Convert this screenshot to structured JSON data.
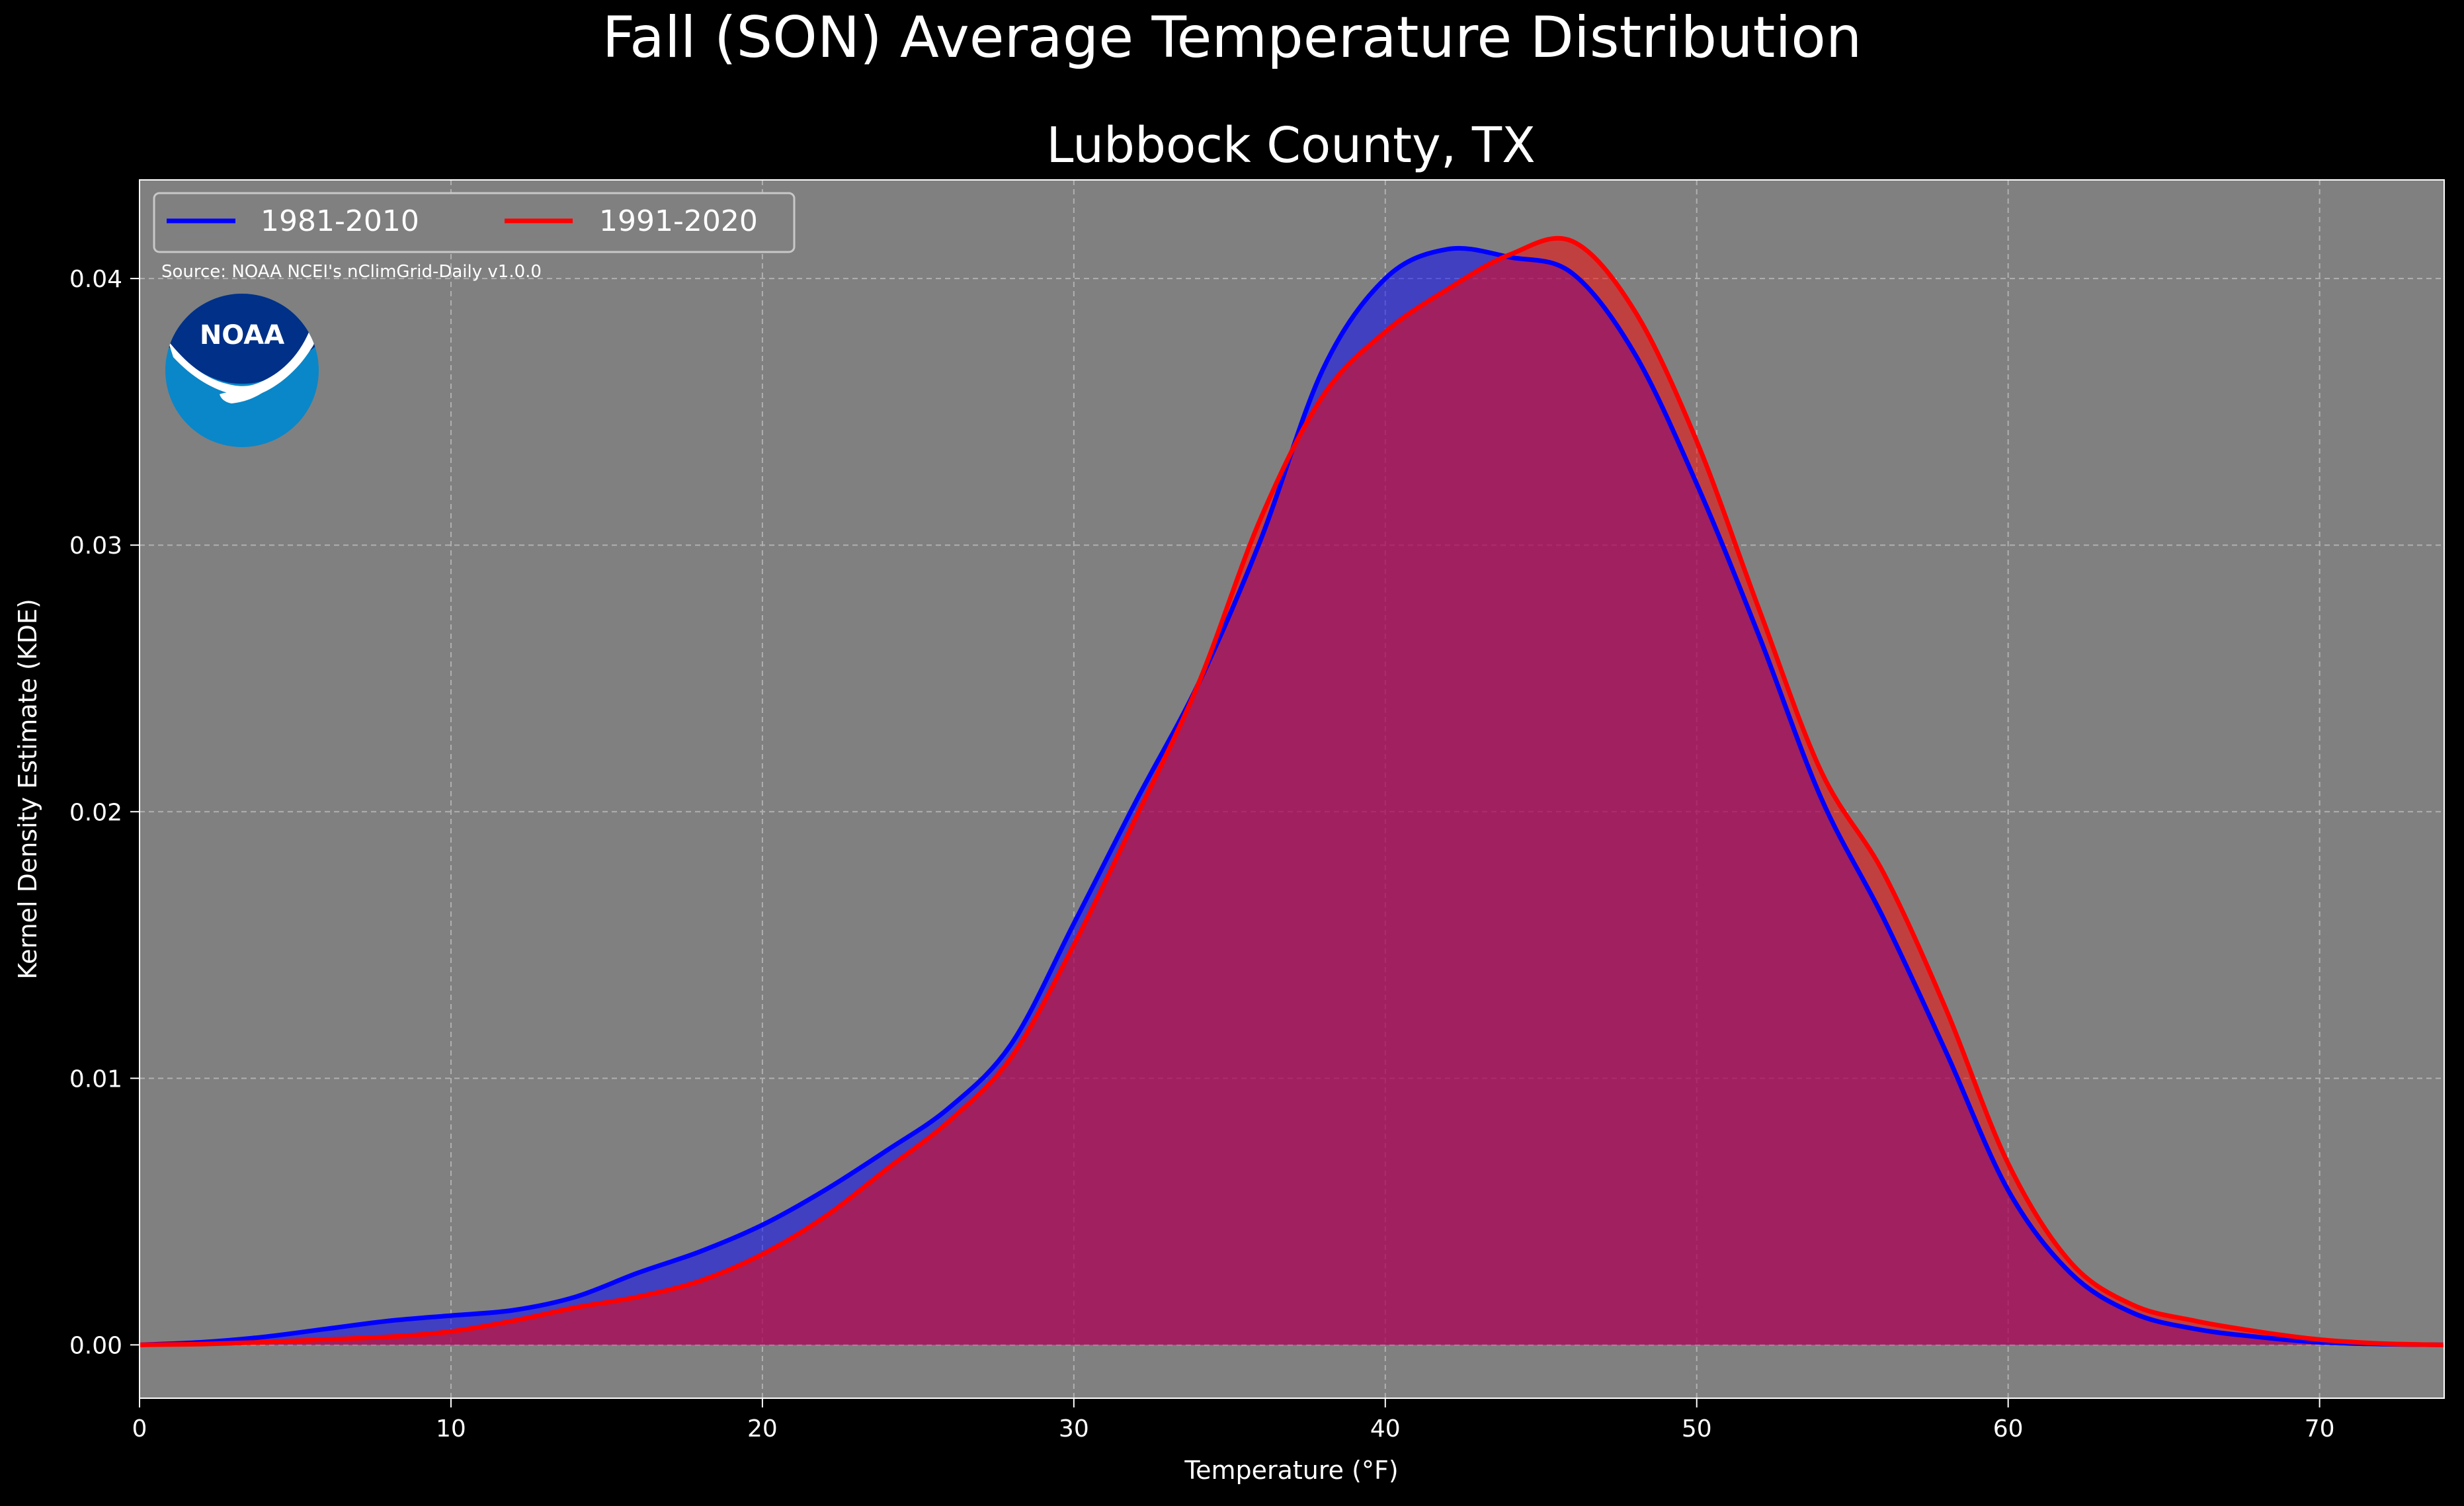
{
  "chart_data": {
    "type": "area",
    "suptitle": "Fall (SON) Average Temperature Distribution",
    "title": "Lubbock County, TX",
    "xlabel": "Temperature ($^\\circ$F)",
    "xlabel_display": "Temperature (°F)",
    "ylabel": "Kernel Density Estimate (KDE)",
    "source": "Source: NOAA NCEI's nClimGrid-Daily v1.0.0",
    "logo_text": "NOAA",
    "xlim": [
      0,
      74
    ],
    "ylim": [
      -0.002,
      0.0437
    ],
    "xticks": [
      0,
      10,
      20,
      30,
      40,
      50,
      60,
      70
    ],
    "xtick_labels": [
      "0",
      "10",
      "20",
      "30",
      "40",
      "50",
      "60",
      "70"
    ],
    "yticks": [
      0,
      0.01,
      0.02,
      0.03,
      0.04
    ],
    "ytick_labels": [
      "0.00",
      "0.01",
      "0.02",
      "0.03",
      "0.04"
    ],
    "grid": true,
    "legend_placement": "top-left",
    "background": "#808080",
    "series": [
      {
        "name": "1981-2010",
        "color": "#0000ff",
        "x": [
          0,
          2,
          4,
          6,
          8,
          10,
          12,
          14,
          16,
          18,
          20,
          22,
          24,
          26,
          28,
          30,
          32,
          34,
          36,
          38,
          40,
          42,
          44,
          46,
          48,
          50,
          52,
          54,
          56,
          58,
          60,
          62,
          64,
          66,
          68,
          70,
          72,
          74
        ],
        "y": [
          0,
          0.0001,
          0.0003,
          0.0006,
          0.0009,
          0.0011,
          0.0013,
          0.0018,
          0.0027,
          0.0035,
          0.0045,
          0.0058,
          0.0073,
          0.0089,
          0.0113,
          0.0158,
          0.0204,
          0.0248,
          0.0302,
          0.0366,
          0.04,
          0.0411,
          0.0408,
          0.0402,
          0.0372,
          0.0323,
          0.0266,
          0.0205,
          0.016,
          0.011,
          0.0058,
          0.0027,
          0.0012,
          0.0006,
          0.0003,
          0.0001,
          3e-05,
          0
        ]
      },
      {
        "name": "1991-2020",
        "color": "#ff0000",
        "x": [
          0,
          2,
          4,
          6,
          8,
          10,
          12,
          14,
          16,
          18,
          20,
          22,
          24,
          26,
          28,
          30,
          32,
          34,
          36,
          38,
          40,
          42,
          44,
          46,
          48,
          50,
          52,
          54,
          56,
          58,
          60,
          62,
          64,
          66,
          68,
          70,
          72,
          74
        ],
        "y": [
          0,
          3e-05,
          0.0001,
          0.0002,
          0.0003,
          0.0005,
          0.0009,
          0.0014,
          0.0018,
          0.0024,
          0.0034,
          0.0048,
          0.0066,
          0.0084,
          0.0108,
          0.015,
          0.0198,
          0.0248,
          0.031,
          0.0356,
          0.038,
          0.0396,
          0.0409,
          0.0414,
          0.0388,
          0.0339,
          0.0276,
          0.0215,
          0.0177,
          0.0126,
          0.0068,
          0.0031,
          0.0015,
          0.0009,
          0.0005,
          0.0002,
          5e-05,
          0
        ]
      }
    ]
  }
}
